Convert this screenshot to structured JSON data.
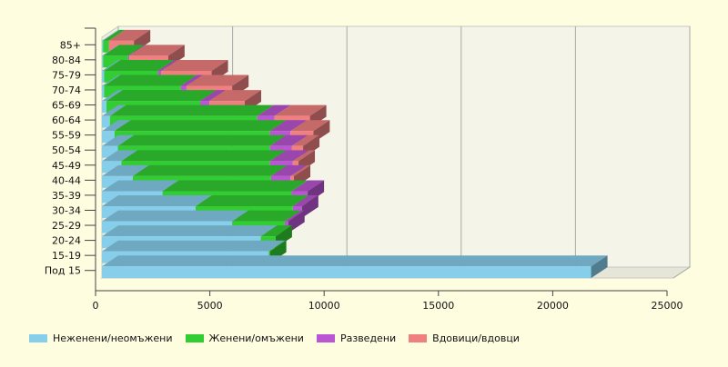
{
  "chart_data": {
    "type": "bar",
    "orientation": "horizontal",
    "stacked": true,
    "style": "3d",
    "categories": [
      "85+",
      "80-84",
      "75-79",
      "70-74",
      "65-69",
      "60-64",
      "55-59",
      "50-54",
      "45-49",
      "40-44",
      "35-39",
      "30-34",
      "25-29",
      "20-24",
      "15-19",
      "Под 15"
    ],
    "series": [
      {
        "name": "Неженени/неомъжени",
        "color": "#87ceeb",
        "values": [
          50,
          50,
          100,
          100,
          200,
          350,
          550,
          700,
          850,
          1350,
          2650,
          4100,
          5700,
          6950,
          7300,
          21400
        ]
      },
      {
        "name": "Женени/омъжени",
        "color": "#32cd32",
        "values": [
          250,
          1100,
          2350,
          3350,
          4100,
          6450,
          6800,
          6650,
          6500,
          6050,
          5650,
          4250,
          2300,
          650,
          50,
          0
        ]
      },
      {
        "name": "Разведени",
        "color": "#ba55d3",
        "values": [
          0,
          50,
          150,
          250,
          400,
          750,
          900,
          950,
          1000,
          850,
          700,
          400,
          150,
          0,
          0,
          0
        ]
      },
      {
        "name": "Вдовици/вдовци",
        "color": "#f08080",
        "values": [
          1100,
          1700,
          2200,
          2000,
          1550,
          1550,
          1000,
          500,
          250,
          150,
          0,
          0,
          0,
          0,
          0,
          0
        ]
      }
    ],
    "xlim": [
      0,
      25000
    ],
    "xticks": [
      0,
      5000,
      10000,
      15000,
      20000,
      25000
    ],
    "grid": true,
    "legend_position": "bottom"
  },
  "colors": {
    "background": "#fffde0",
    "plot_back": "#f4f4e8",
    "grid": "#a8a8a8"
  }
}
